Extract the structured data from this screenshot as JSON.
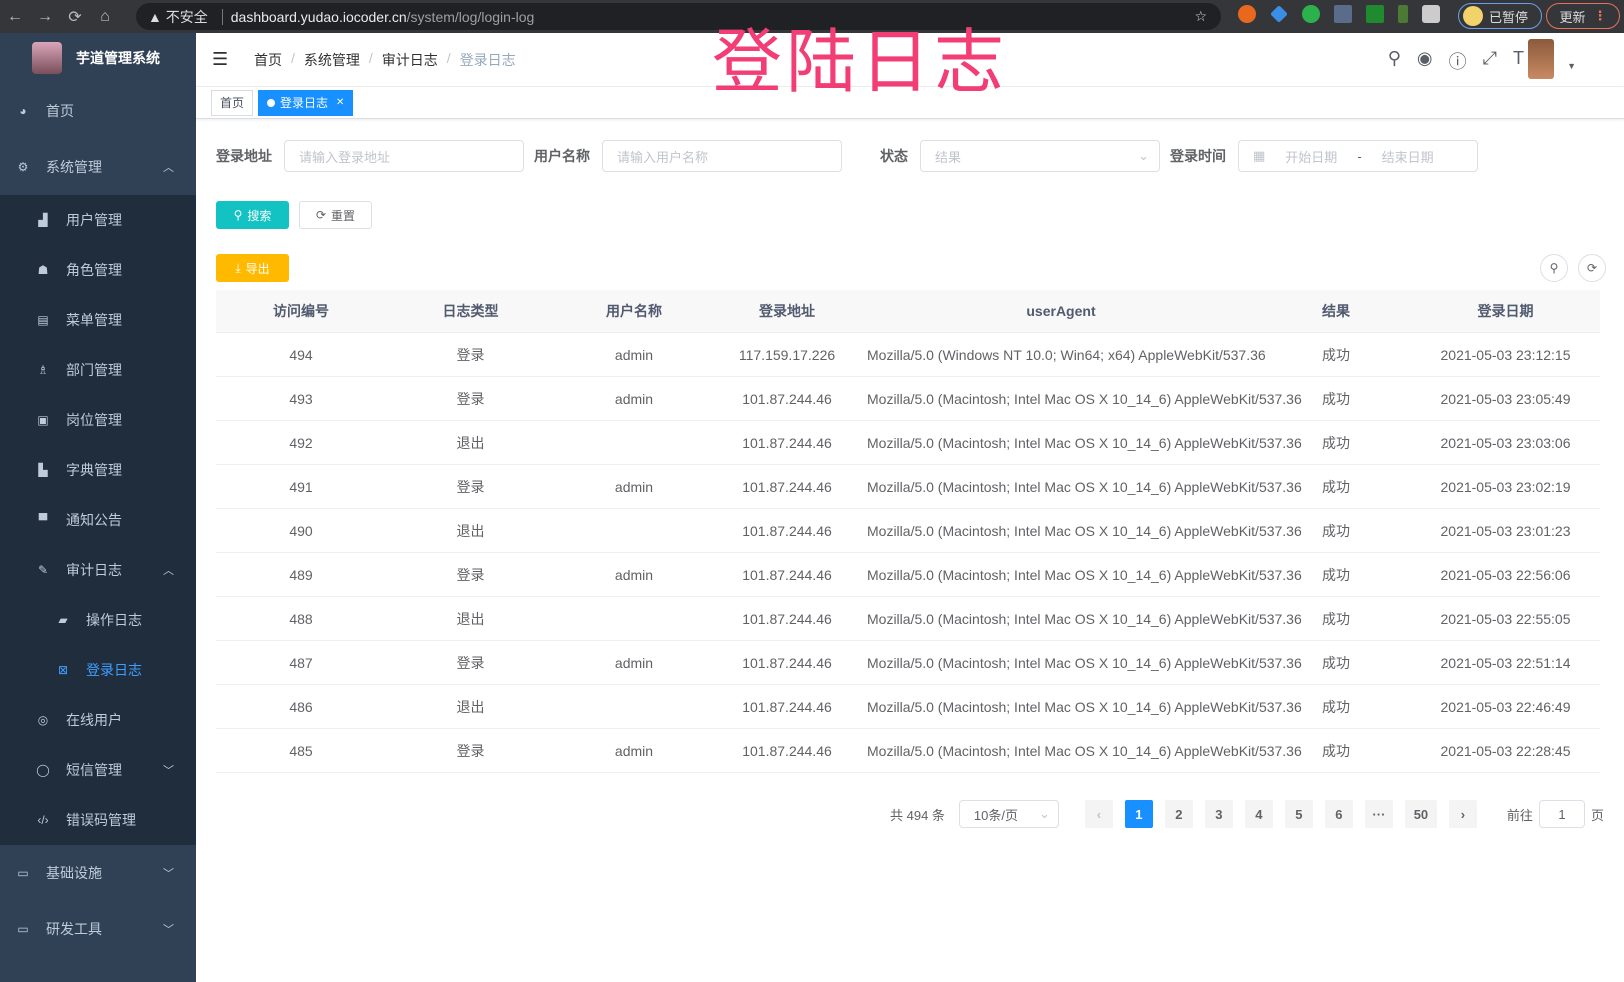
{
  "browser": {
    "back": "←",
    "forward": "→",
    "reload": "⟳",
    "home": "⌂",
    "warning": "▲ 不安全",
    "host": "dashboard.yudao.iocoder.cn",
    "path": "/system/log/login-log",
    "paused": "已暂停",
    "update": "更新"
  },
  "overlay_title": "登陆日志",
  "sidebar": {
    "logo": "芋道管理系统",
    "items": [
      {
        "label": "首页",
        "icon": "dashboard-icon"
      },
      {
        "label": "系统管理",
        "icon": "gear-icon",
        "expanded": true,
        "children": [
          {
            "label": "用户管理",
            "icon": "user-icon"
          },
          {
            "label": "角色管理",
            "icon": "peoples-icon"
          },
          {
            "label": "菜单管理",
            "icon": "tree-table-icon"
          },
          {
            "label": "部门管理",
            "icon": "tree-icon"
          },
          {
            "label": "岗位管理",
            "icon": "post-icon"
          },
          {
            "label": "字典管理",
            "icon": "dict-icon"
          },
          {
            "label": "通知公告",
            "icon": "message-icon"
          },
          {
            "label": "审计日志",
            "icon": "log-icon",
            "expanded": true,
            "children": [
              {
                "label": "操作日志",
                "icon": "form-icon"
              },
              {
                "label": "登录日志",
                "icon": "logininfor-icon",
                "active": true
              }
            ]
          },
          {
            "label": "在线用户",
            "icon": "online-icon"
          },
          {
            "label": "短信管理",
            "icon": "validcode-icon"
          },
          {
            "label": "错误码管理",
            "icon": "code-icon"
          }
        ]
      },
      {
        "label": "基础设施",
        "icon": "monitor-icon"
      },
      {
        "label": "研发工具",
        "icon": "tool-icon"
      }
    ]
  },
  "breadcrumb": [
    "首页",
    "系统管理",
    "审计日志",
    "登录日志"
  ],
  "tags": [
    {
      "label": "首页"
    },
    {
      "label": "登录日志",
      "active": true
    }
  ],
  "filters": {
    "addr_label": "登录地址",
    "addr_placeholder": "请输入登录地址",
    "user_label": "用户名称",
    "user_placeholder": "请输入用户名称",
    "status_label": "状态",
    "status_placeholder": "结果",
    "time_label": "登录时间",
    "start_placeholder": "开始日期",
    "range_sep": "-",
    "end_placeholder": "结束日期"
  },
  "buttons": {
    "search": "搜索",
    "reset": "重置",
    "export": "导出"
  },
  "colors": {
    "sidebar": "#304156",
    "submenu": "#1f2d3d",
    "primary": "#1890ff",
    "search": "#13c2c2",
    "export": "#ffba00",
    "overlay": "#f23d75"
  },
  "table": {
    "headers": [
      "访问编号",
      "日志类型",
      "用户名称",
      "登录地址",
      "userAgent",
      "结果",
      "登录日期"
    ],
    "rows": [
      [
        "494",
        "登录",
        "admin",
        "117.159.17.226",
        "Mozilla/5.0 (Windows NT 10.0; Win64; x64) AppleWebKit/537.36",
        "成功",
        "2021-05-03 23:12:15"
      ],
      [
        "493",
        "登录",
        "admin",
        "101.87.244.46",
        "Mozilla/5.0 (Macintosh; Intel Mac OS X 10_14_6) AppleWebKit/537.36",
        "成功",
        "2021-05-03 23:05:49"
      ],
      [
        "492",
        "退出",
        "",
        "101.87.244.46",
        "Mozilla/5.0 (Macintosh; Intel Mac OS X 10_14_6) AppleWebKit/537.36",
        "成功",
        "2021-05-03 23:03:06"
      ],
      [
        "491",
        "登录",
        "admin",
        "101.87.244.46",
        "Mozilla/5.0 (Macintosh; Intel Mac OS X 10_14_6) AppleWebKit/537.36",
        "成功",
        "2021-05-03 23:02:19"
      ],
      [
        "490",
        "退出",
        "",
        "101.87.244.46",
        "Mozilla/5.0 (Macintosh; Intel Mac OS X 10_14_6) AppleWebKit/537.36",
        "成功",
        "2021-05-03 23:01:23"
      ],
      [
        "489",
        "登录",
        "admin",
        "101.87.244.46",
        "Mozilla/5.0 (Macintosh; Intel Mac OS X 10_14_6) AppleWebKit/537.36",
        "成功",
        "2021-05-03 22:56:06"
      ],
      [
        "488",
        "退出",
        "",
        "101.87.244.46",
        "Mozilla/5.0 (Macintosh; Intel Mac OS X 10_14_6) AppleWebKit/537.36",
        "成功",
        "2021-05-03 22:55:05"
      ],
      [
        "487",
        "登录",
        "admin",
        "101.87.244.46",
        "Mozilla/5.0 (Macintosh; Intel Mac OS X 10_14_6) AppleWebKit/537.36",
        "成功",
        "2021-05-03 22:51:14"
      ],
      [
        "486",
        "退出",
        "",
        "101.87.244.46",
        "Mozilla/5.0 (Macintosh; Intel Mac OS X 10_14_6) AppleWebKit/537.36",
        "成功",
        "2021-05-03 22:46:49"
      ],
      [
        "485",
        "登录",
        "admin",
        "101.87.244.46",
        "Mozilla/5.0 (Macintosh; Intel Mac OS X 10_14_6) AppleWebKit/537.36",
        "成功",
        "2021-05-03 22:28:45"
      ]
    ]
  },
  "pagination": {
    "total": "共 494 条",
    "page_size": "10条/页",
    "pages": [
      "1",
      "2",
      "3",
      "4",
      "5",
      "6",
      "···",
      "50"
    ],
    "current": "1",
    "goto_label": "前往",
    "goto_value": "1",
    "goto_suffix": "页",
    "prev": "‹",
    "next": "›"
  }
}
